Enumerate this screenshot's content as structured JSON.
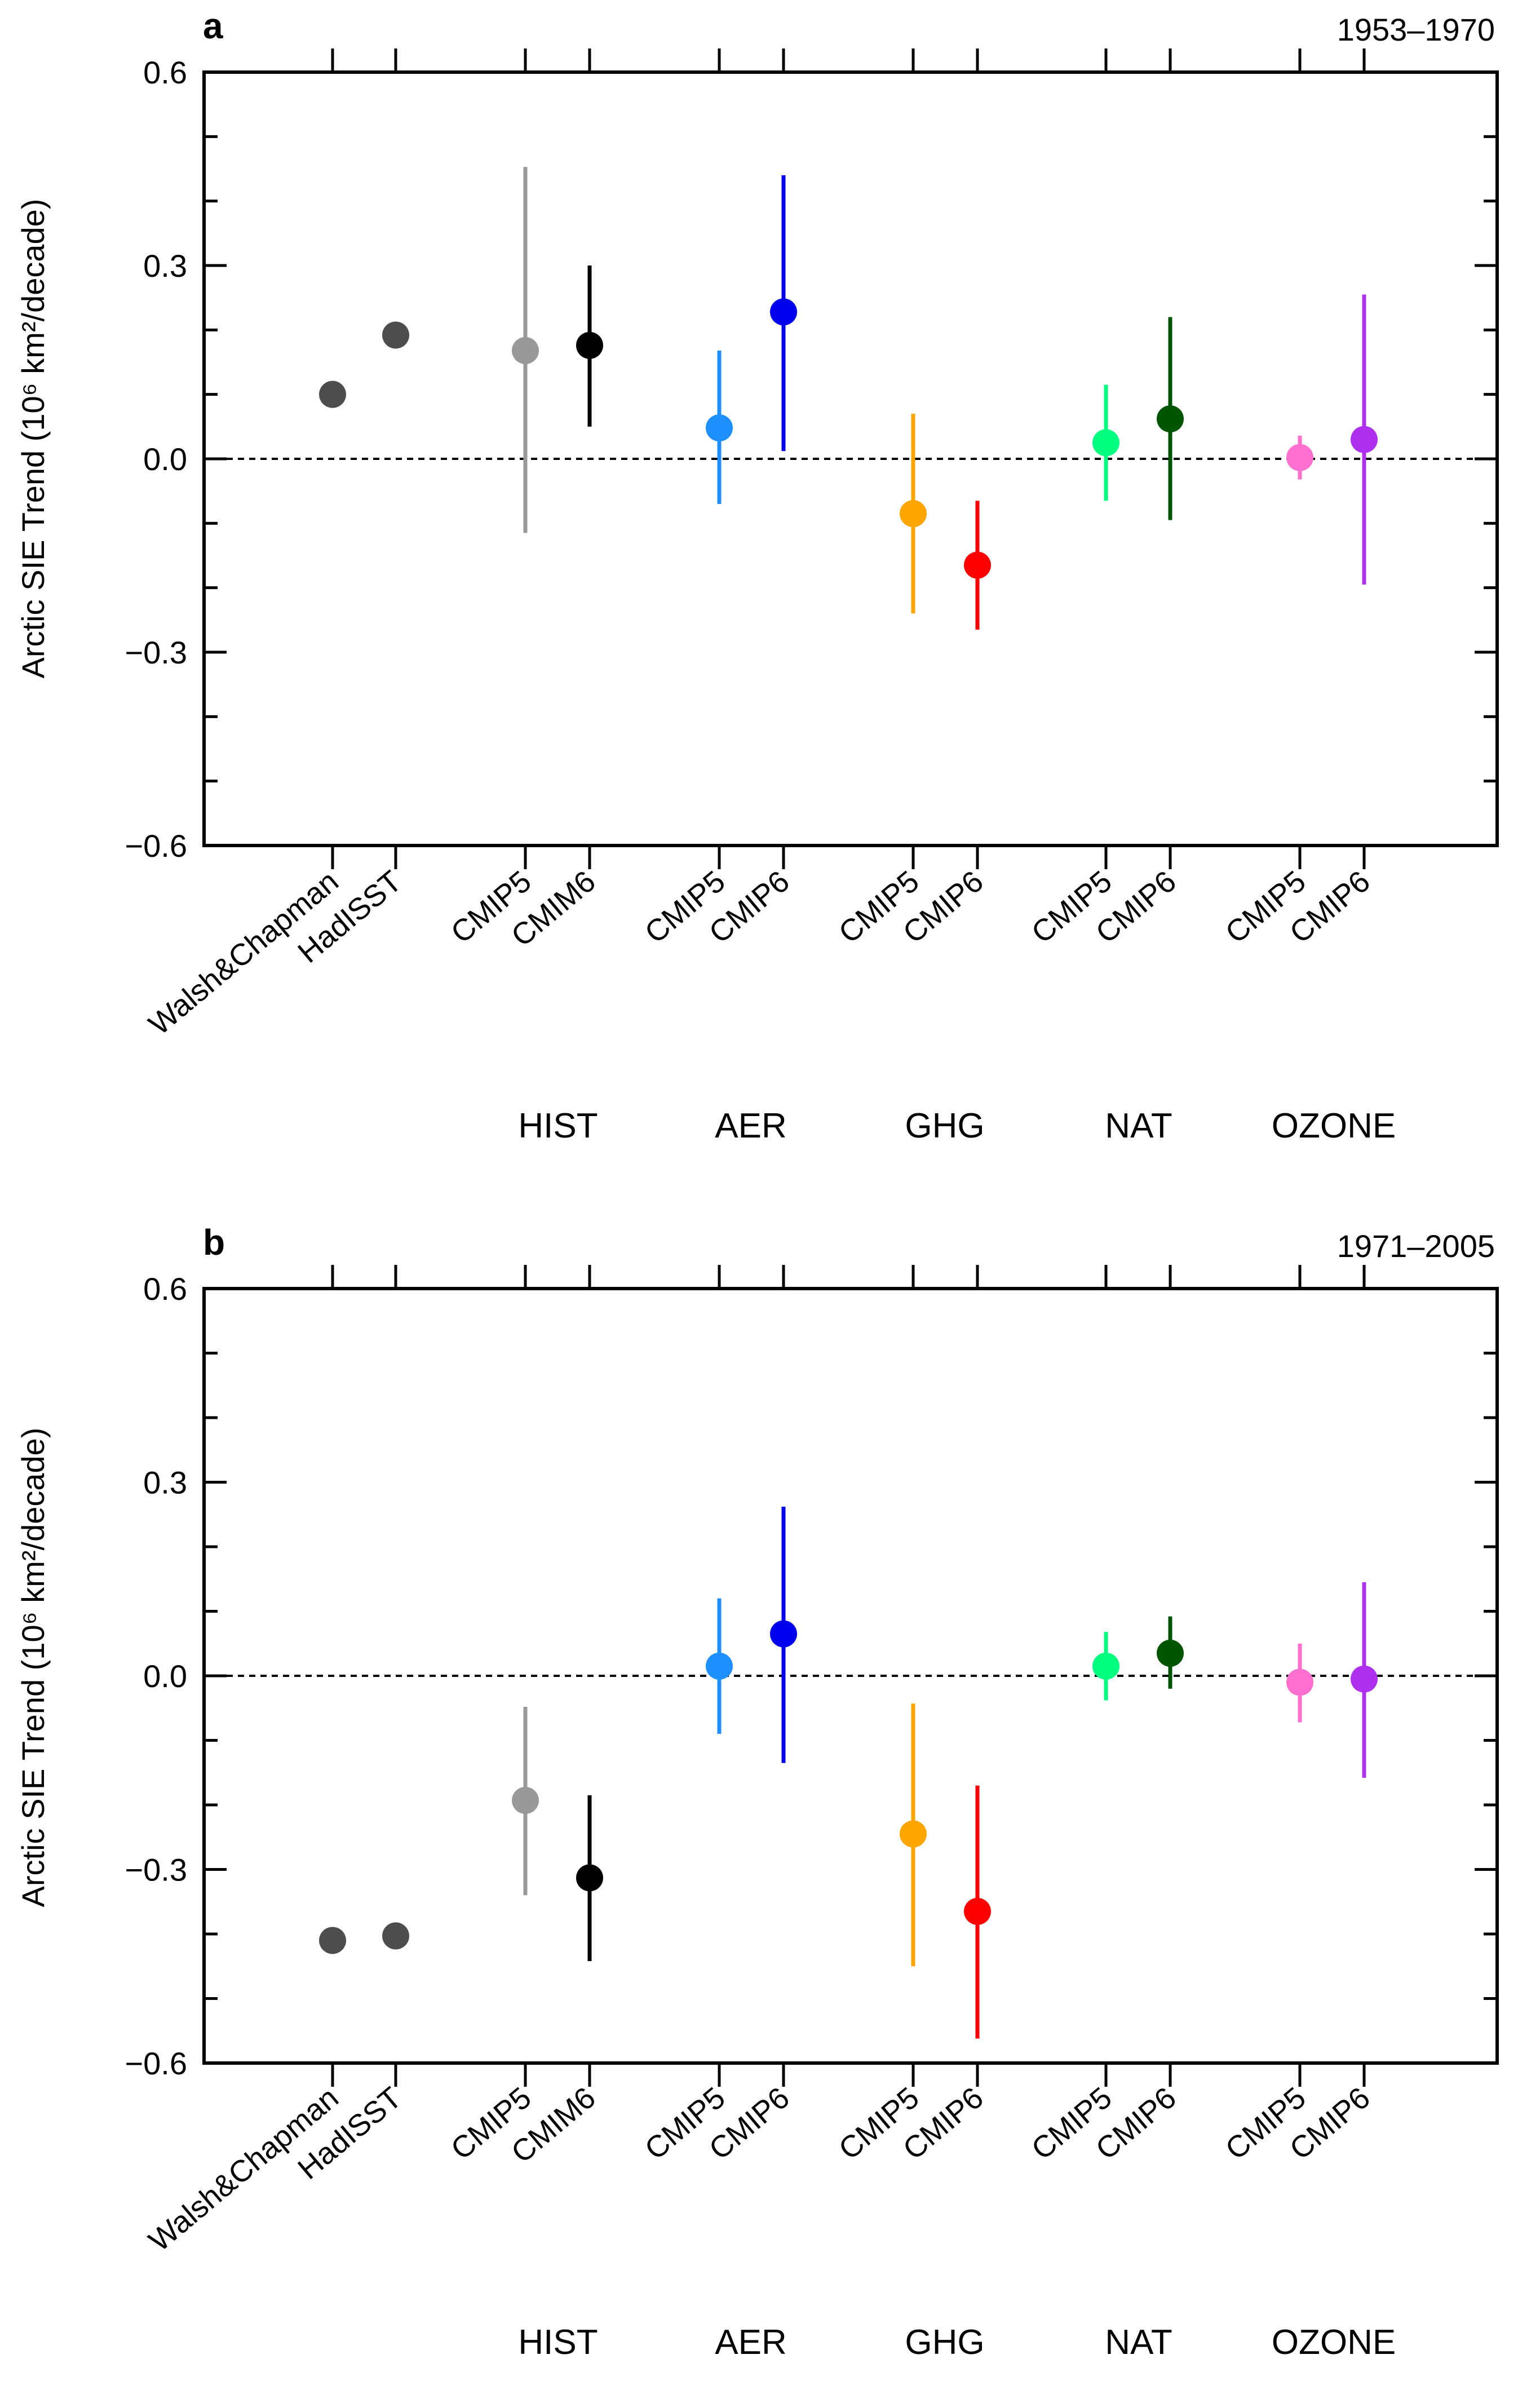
{
  "chart_data": [
    {
      "type": "scatter",
      "panel": "a",
      "period": "1953–1970",
      "ylabel": "Arctic SIE Trend (10⁶ km²/decade)",
      "ylim": [
        -0.6,
        0.6
      ],
      "yticks": [
        "0.6",
        "0.3",
        "0.0",
        "−0.3",
        "−0.6"
      ],
      "categories": [
        "Walsh&Chapman",
        "HadISST",
        "CMIP5",
        "CMIM6",
        "CMIP5",
        "CMIP6",
        "CMIP5",
        "CMIP6",
        "CMIP5",
        "CMIP6",
        "CMIP5",
        "CMIP6"
      ],
      "groups": [
        "HIST",
        "AER",
        "GHG",
        "NAT",
        "OZONE"
      ],
      "series": [
        {
          "name": "Walsh&Chapman",
          "color": "#4d4d4d",
          "value": 0.1,
          "low": null,
          "high": null
        },
        {
          "name": "HadISST",
          "color": "#4d4d4d",
          "value": 0.192,
          "low": null,
          "high": null
        },
        {
          "name": "HIST CMIP5",
          "color": "#999999",
          "value": 0.168,
          "low": -0.115,
          "high": 0.453
        },
        {
          "name": "HIST CMIP6",
          "color": "#000000",
          "value": 0.176,
          "low": 0.05,
          "high": 0.3
        },
        {
          "name": "AER CMIP5",
          "color": "#1e8fff",
          "value": 0.048,
          "low": -0.07,
          "high": 0.168
        },
        {
          "name": "AER CMIP6",
          "color": "#0000ee",
          "value": 0.228,
          "low": 0.012,
          "high": 0.44
        },
        {
          "name": "GHG CMIP5",
          "color": "#ffa500",
          "value": -0.085,
          "low": -0.24,
          "high": 0.07
        },
        {
          "name": "GHG CMIP6",
          "color": "#ff0000",
          "value": -0.165,
          "low": -0.265,
          "high": -0.065
        },
        {
          "name": "NAT CMIP5",
          "color": "#00ff7f",
          "value": 0.025,
          "low": -0.065,
          "high": 0.115
        },
        {
          "name": "NAT CMIP6",
          "color": "#005500",
          "value": 0.062,
          "low": -0.095,
          "high": 0.22
        },
        {
          "name": "OZONE CMIP5",
          "color": "#ff6fd0",
          "value": 0.002,
          "low": -0.032,
          "high": 0.036
        },
        {
          "name": "OZONE CMIP6",
          "color": "#b030f0",
          "value": 0.03,
          "low": -0.195,
          "high": 0.255
        }
      ]
    },
    {
      "type": "scatter",
      "panel": "b",
      "period": "1971–2005",
      "ylabel": "Arctic SIE Trend (10⁶ km²/decade)",
      "ylim": [
        -0.6,
        0.6
      ],
      "yticks": [
        "0.6",
        "0.3",
        "0.0",
        "−0.3",
        "−0.6"
      ],
      "categories": [
        "Walsh&Chapman",
        "HadISST",
        "CMIP5",
        "CMIM6",
        "CMIP5",
        "CMIP6",
        "CMIP5",
        "CMIP6",
        "CMIP5",
        "CMIP6",
        "CMIP5",
        "CMIP6"
      ],
      "groups": [
        "HIST",
        "AER",
        "GHG",
        "NAT",
        "OZONE"
      ],
      "series": [
        {
          "name": "Walsh&Chapman",
          "color": "#4d4d4d",
          "value": -0.41,
          "low": null,
          "high": null
        },
        {
          "name": "HadISST",
          "color": "#4d4d4d",
          "value": -0.403,
          "low": null,
          "high": null
        },
        {
          "name": "HIST CMIP5",
          "color": "#999999",
          "value": -0.193,
          "low": -0.34,
          "high": -0.048
        },
        {
          "name": "HIST CMIP6",
          "color": "#000000",
          "value": -0.313,
          "low": -0.442,
          "high": -0.185
        },
        {
          "name": "AER CMIP5",
          "color": "#1e8fff",
          "value": 0.015,
          "low": -0.09,
          "high": 0.12
        },
        {
          "name": "AER CMIP6",
          "color": "#0000ee",
          "value": 0.065,
          "low": -0.135,
          "high": 0.262
        },
        {
          "name": "GHG CMIP5",
          "color": "#ffa500",
          "value": -0.245,
          "low": -0.45,
          "high": -0.043
        },
        {
          "name": "GHG CMIP6",
          "color": "#ff0000",
          "value": -0.365,
          "low": -0.562,
          "high": -0.17
        },
        {
          "name": "NAT CMIP5",
          "color": "#00ff7f",
          "value": 0.015,
          "low": -0.038,
          "high": 0.068
        },
        {
          "name": "NAT CMIP6",
          "color": "#005500",
          "value": 0.035,
          "low": -0.02,
          "high": 0.092
        },
        {
          "name": "OZONE CMIP5",
          "color": "#ff6fd0",
          "value": -0.01,
          "low": -0.072,
          "high": 0.05
        },
        {
          "name": "OZONE CMIP6",
          "color": "#b030f0",
          "value": -0.005,
          "low": -0.158,
          "high": 0.145
        }
      ]
    }
  ]
}
